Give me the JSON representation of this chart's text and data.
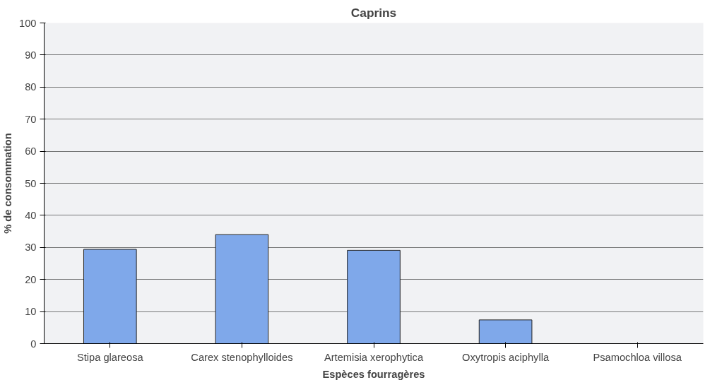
{
  "chart_data": {
    "type": "bar",
    "title": "Caprins",
    "xlabel": "Espèces fourragères",
    "ylabel": "% de consommation",
    "categories": [
      "Stipa glareosa",
      "Carex stenophylloides",
      "Artemisia xerophytica",
      "Oxytropis aciphylla",
      "Psamochloa villosa"
    ],
    "values": [
      29.4,
      34.0,
      29.1,
      7.4,
      0
    ],
    "color": "#7fa8ea",
    "ylim": [
      0,
      100
    ],
    "yticks": [
      0,
      10,
      20,
      30,
      40,
      50,
      60,
      70,
      80,
      90,
      100
    ],
    "grid": "y"
  }
}
